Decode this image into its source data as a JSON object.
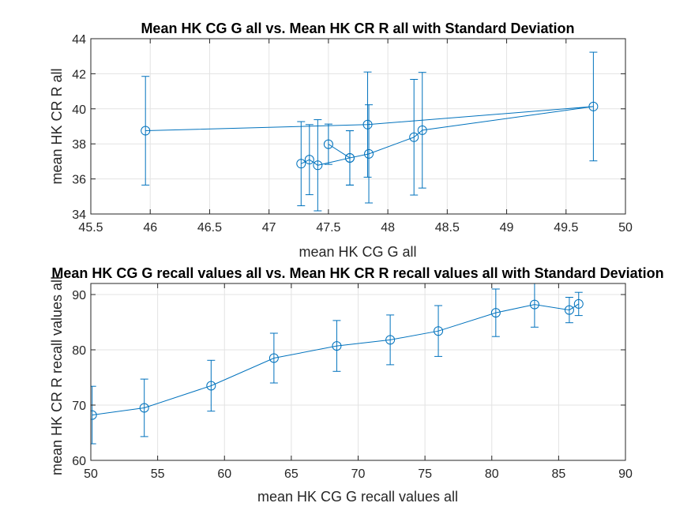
{
  "figure": {
    "background": "#ffffff",
    "line_color": "#0072BD"
  },
  "chart_data": [
    {
      "type": "line",
      "title": "Mean HK CG G all vs. Mean HK CR R all with Standard Deviation",
      "xlabel": "mean HK CG G all",
      "ylabel": "mean HK CR R all",
      "xlim": [
        45.5,
        50
      ],
      "ylim": [
        34,
        44
      ],
      "xticks": [
        45.5,
        46,
        46.5,
        47,
        47.5,
        48,
        48.5,
        49,
        49.5,
        50
      ],
      "yticks": [
        34,
        36,
        38,
        40,
        42,
        44
      ],
      "grid": true,
      "marker": "circle",
      "error_bars": true,
      "x": [
        45.96,
        47.83,
        49.73,
        48.29,
        48.22,
        47.84,
        47.68,
        47.5,
        47.68,
        47.41,
        47.34,
        47.27
      ],
      "y": [
        38.75,
        39.1,
        40.13,
        38.78,
        38.38,
        37.43,
        37.2,
        37.98,
        37.2,
        36.78,
        37.1,
        36.87
      ],
      "err": [
        3.1,
        3.0,
        3.1,
        3.3,
        3.3,
        2.8,
        1.55,
        1.15,
        1.55,
        2.6,
        2.0,
        2.4
      ]
    },
    {
      "type": "line",
      "title": "Mean HK CG G recall values all vs. Mean HK CR R recall values all with Standard Deviation",
      "xlabel": "mean HK CG G recall values all",
      "ylabel": "mean HK CR R recall values all",
      "xlim": [
        50,
        90
      ],
      "ylim": [
        60,
        92
      ],
      "xticks": [
        50,
        55,
        60,
        65,
        70,
        75,
        80,
        85,
        90
      ],
      "yticks": [
        60,
        70,
        80,
        90
      ],
      "grid": true,
      "marker": "circle",
      "error_bars": true,
      "x": [
        50.1,
        54.0,
        59.0,
        63.7,
        68.4,
        72.4,
        76.0,
        80.3,
        83.2,
        85.8,
        86.5
      ],
      "y": [
        68.2,
        69.5,
        73.5,
        78.5,
        80.7,
        81.8,
        83.4,
        86.7,
        88.2,
        87.2,
        88.3
      ],
      "err": [
        5.2,
        5.2,
        4.6,
        4.5,
        4.6,
        4.5,
        4.6,
        4.3,
        4.1,
        2.3,
        2.1
      ]
    }
  ]
}
